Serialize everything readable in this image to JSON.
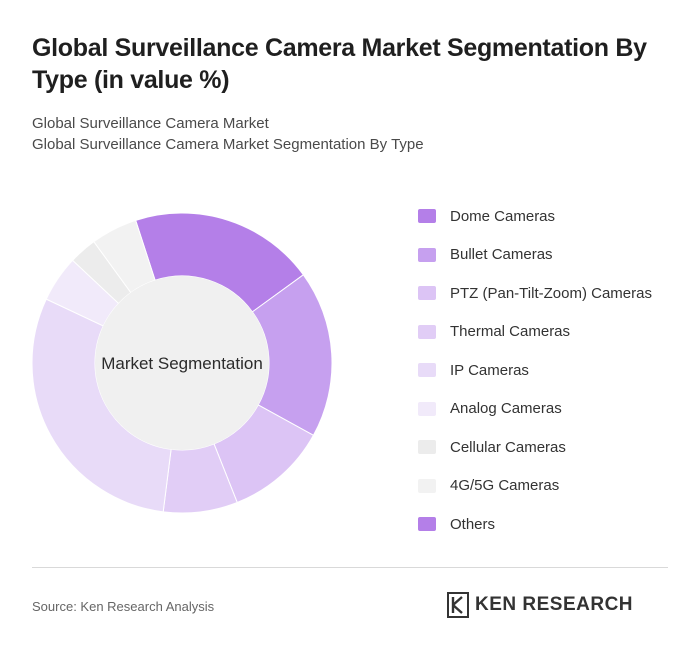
{
  "title": "Global Surveillance Camera Market Segmentation By Type (in value %)",
  "subtitle_line1": "Global Surveillance Camera Market",
  "subtitle_line2": "Global Surveillance Camera Market Segmentation By Type",
  "center_label": "Market Segmentation",
  "source": "Source: Ken Research Analysis",
  "brand": "KEN RESEARCH",
  "chart_data": {
    "type": "pie",
    "style": "donut",
    "categories": [
      "Dome Cameras",
      "Bullet Cameras",
      "PTZ (Pan-Tilt-Zoom) Cameras",
      "Thermal Cameras",
      "IP Cameras",
      "Analog Cameras",
      "Cellular Cameras",
      "4G/5G Cameras",
      "Others"
    ],
    "values": [
      20,
      18,
      11,
      8,
      30,
      5,
      3,
      5,
      0
    ],
    "colors": [
      "#b47fe8",
      "#c6a0ef",
      "#dcc4f5",
      "#e1cdf6",
      "#e8dbf8",
      "#f1eafa",
      "#ececec",
      "#f2f2f2",
      "#b47fe8"
    ],
    "legend_position": "right"
  }
}
